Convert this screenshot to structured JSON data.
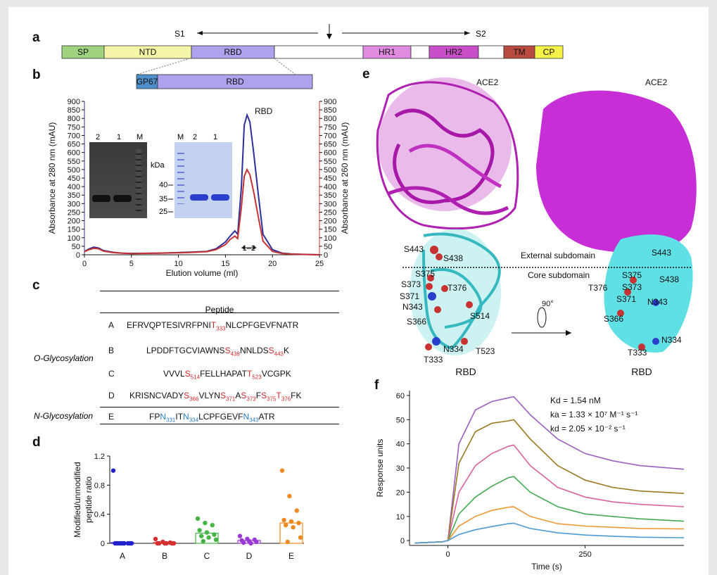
{
  "panels": {
    "a": "a",
    "b": "b",
    "c": "c",
    "d": "d",
    "e": "e",
    "f": "f"
  },
  "panel_a": {
    "s1": "S1",
    "s2": "S2",
    "domains": [
      {
        "label": "SP",
        "color": "#9fd37f"
      },
      {
        "label": "NTD",
        "color": "#f6f6a8"
      },
      {
        "label": "RBD",
        "color": "#ada2ec"
      },
      {
        "label": "",
        "color": "#ffffff"
      },
      {
        "label": "HR1",
        "color": "#e08ae0"
      },
      {
        "label": "",
        "color": "#ffffff"
      },
      {
        "label": "HR2",
        "color": "#c94fc9"
      },
      {
        "label": "",
        "color": "#ffffff"
      },
      {
        "label": "TM",
        "color": "#b94a3f"
      },
      {
        "label": "CP",
        "color": "#f6f24a"
      }
    ],
    "construct": [
      {
        "label": "GP67",
        "color": "#4f8fc9"
      },
      {
        "label": "RBD",
        "color": "#ada2ec"
      }
    ]
  },
  "panel_b": {
    "title": "RBD",
    "ylabel_left": "Absorbance at 280 nm (mAU)",
    "ylabel_right": "Absorbance at 260 nm (mAU)",
    "xlabel": "Elution volume (ml)",
    "fraction_label": "1–2",
    "gel1_lanes": [
      "2",
      "1",
      "M"
    ],
    "gel2_lanes": [
      "M",
      "2",
      "1"
    ],
    "kda": "kDa",
    "markers": [
      "40",
      "35",
      "25"
    ]
  },
  "panel_c": {
    "header": "Peptide",
    "o_label": "O-Glycosylation",
    "n_label": "N-Glycosylation",
    "rows": [
      {
        "id": "A",
        "parts": [
          [
            "EFRVQPTESIVRFPNI",
            ""
          ],
          [
            "T",
            "red"
          ],
          [
            "333",
            "redsub"
          ],
          [
            "NLCPFGEVFNATR",
            ""
          ]
        ]
      },
      {
        "id": "B",
        "parts": [
          [
            "LPDDFTGCVIAWNS",
            ""
          ],
          [
            "S",
            "red"
          ],
          [
            "438",
            "redsub"
          ],
          [
            "NNLDS",
            ""
          ],
          [
            "S",
            "red"
          ],
          [
            "443",
            "redsub"
          ],
          [
            "K",
            ""
          ]
        ]
      },
      {
        "id": "C",
        "parts": [
          [
            "VVVL",
            ""
          ],
          [
            "S",
            "red"
          ],
          [
            "514",
            "redsub"
          ],
          [
            "FELLHAPAT",
            ""
          ],
          [
            "T",
            "red"
          ],
          [
            "523",
            "redsub"
          ],
          [
            "VCGPK",
            ""
          ]
        ]
      },
      {
        "id": "D",
        "parts": [
          [
            "KRISNCVADY",
            ""
          ],
          [
            "S",
            "red"
          ],
          [
            "366",
            "redsub"
          ],
          [
            "VLYN",
            ""
          ],
          [
            "S",
            "red"
          ],
          [
            "371",
            "redsub"
          ],
          [
            "A",
            ""
          ],
          [
            "S",
            "red"
          ],
          [
            "373",
            "redsub"
          ],
          [
            "F",
            ""
          ],
          [
            "S",
            "red"
          ],
          [
            "375",
            "redsub"
          ],
          [
            "T",
            "red"
          ],
          [
            "376",
            "redsub"
          ],
          [
            "FK",
            ""
          ]
        ]
      },
      {
        "id": "E",
        "parts": [
          [
            "FP",
            ""
          ],
          [
            "N",
            "blue"
          ],
          [
            "331",
            "bluesub"
          ],
          [
            "IT",
            ""
          ],
          [
            "N",
            "blue"
          ],
          [
            "334",
            "bluesub"
          ],
          [
            "LCPFGEVF",
            ""
          ],
          [
            "N",
            "blue"
          ],
          [
            "343",
            "bluesub"
          ],
          [
            "ATR",
            ""
          ]
        ]
      }
    ]
  },
  "panel_e": {
    "ace2": "ACE2",
    "rbd": "RBD",
    "external": "External subdomain",
    "core": "Core subdomain",
    "rotation": "90°",
    "left_labels": [
      "S443",
      "S438",
      "S375",
      "S373",
      "S371",
      "T376",
      "N343",
      "S366",
      "S514",
      "N334",
      "T523",
      "T333"
    ],
    "right_labels": [
      "S443",
      "S375",
      "S373",
      "S438",
      "T376",
      "S371",
      "N343",
      "S366",
      "N334",
      "T333"
    ]
  },
  "panel_f": {
    "kd": "Kd = 1.54 nM",
    "ka": "ka = 1.33 × 10⁷ M⁻¹ s⁻¹",
    "kdis": "kd = 2.05 × 10⁻² s⁻¹"
  },
  "chart_data": [
    {
      "panel": "b",
      "type": "line",
      "title": "RBD",
      "xlabel": "Elution volume (ml)",
      "ylabel": "Absorbance at 280 nm (mAU)",
      "ylabel_right": "Absorbance at 260 nm (mAU)",
      "xlim": [
        0,
        25
      ],
      "ylim": [
        0,
        900
      ],
      "xticks": [
        0,
        5,
        10,
        15,
        20,
        25
      ],
      "yticks": [
        0,
        50,
        100,
        150,
        200,
        250,
        300,
        350,
        400,
        450,
        500,
        550,
        600,
        650,
        700,
        750,
        800,
        850,
        900
      ],
      "series": [
        {
          "color": "#2b2f9c",
          "x": [
            0,
            0.5,
            1,
            1.5,
            2,
            3,
            4,
            5,
            8,
            11,
            13,
            14,
            15,
            15.5,
            16,
            16.3,
            16.7,
            17,
            17.3,
            17.6,
            18,
            18.5,
            19,
            20,
            21,
            22,
            23,
            25
          ],
          "y": [
            20,
            35,
            45,
            40,
            25,
            15,
            10,
            8,
            10,
            15,
            20,
            35,
            75,
            110,
            140,
            120,
            400,
            760,
            820,
            780,
            600,
            350,
            120,
            30,
            10,
            5,
            3,
            0
          ]
        },
        {
          "color": "#c83232",
          "x": [
            0,
            0.5,
            1,
            1.5,
            2,
            3,
            4,
            5,
            8,
            11,
            13,
            14,
            15,
            15.5,
            16,
            16.3,
            16.7,
            17,
            17.3,
            17.6,
            18,
            18.5,
            19,
            20,
            21,
            22,
            23,
            25
          ],
          "y": [
            18,
            30,
            38,
            35,
            22,
            13,
            9,
            7,
            9,
            13,
            18,
            30,
            60,
            90,
            110,
            95,
            280,
            460,
            500,
            470,
            370,
            220,
            80,
            20,
            8,
            4,
            2,
            0
          ]
        }
      ]
    },
    {
      "panel": "d",
      "type": "scatter",
      "ylabel": "Modified/unmodified peptide ratio",
      "categories": [
        "A",
        "B",
        "C",
        "D",
        "E"
      ],
      "ylim": [
        0,
        1.2
      ],
      "yticks": [
        0,
        0.4,
        0.8,
        1.2
      ],
      "bar_means": [
        0.01,
        0.01,
        0.14,
        0.04,
        0.28
      ],
      "colors": [
        "#2222cc",
        "#d43030",
        "#44b444",
        "#9a3ad4",
        "#ee8a22"
      ],
      "points": [
        [
          1.0,
          0,
          0,
          0,
          0,
          0,
          0,
          0,
          0,
          0
        ],
        [
          0.06,
          0.02,
          0.01,
          0,
          0,
          0,
          0,
          0,
          0
        ],
        [
          0.34,
          0.28,
          0.25,
          0.18,
          0.15,
          0.12,
          0.1,
          0.08,
          0.05,
          0.03
        ],
        [
          0.1,
          0.06,
          0.05,
          0.04,
          0.03,
          0.02,
          0.01,
          0
        ],
        [
          1.0,
          0.65,
          0.45,
          0.32,
          0.3,
          0.28,
          0.25,
          0.22,
          0.08,
          0.02
        ]
      ]
    },
    {
      "panel": "f",
      "type": "line",
      "xlabel": "Time (s)",
      "ylabel": "Response units",
      "xlim": [
        -70,
        430
      ],
      "ylim": [
        -2,
        62
      ],
      "xticks": [
        0,
        250
      ],
      "yticks": [
        0,
        10,
        20,
        30,
        40,
        50,
        60
      ],
      "series": [
        {
          "color": "#9b5fc0",
          "x": [
            -60,
            -10,
            0,
            20,
            50,
            80,
            110,
            120,
            150,
            200,
            250,
            300,
            350,
            430
          ],
          "y": [
            -1,
            -0.5,
            0,
            40,
            54,
            57.5,
            59,
            59.5,
            52,
            42,
            36,
            33,
            31,
            29.5
          ]
        },
        {
          "color": "#9a7a22",
          "x": [
            -60,
            -10,
            0,
            20,
            50,
            80,
            110,
            120,
            150,
            200,
            250,
            300,
            350,
            430
          ],
          "y": [
            -1,
            -0.5,
            0,
            32,
            45,
            48.5,
            49.5,
            50,
            42,
            31,
            25,
            22,
            20.5,
            19.5
          ]
        },
        {
          "color": "#d9629e",
          "x": [
            -60,
            -10,
            0,
            20,
            50,
            80,
            110,
            120,
            150,
            200,
            250,
            300,
            350,
            430
          ],
          "y": [
            -1,
            -0.5,
            0,
            20,
            31,
            36,
            39,
            39.5,
            31,
            22,
            18,
            16,
            15,
            14
          ]
        },
        {
          "color": "#44aa55",
          "x": [
            -60,
            -10,
            0,
            20,
            50,
            80,
            110,
            120,
            150,
            200,
            250,
            300,
            350,
            430
          ],
          "y": [
            -1,
            -0.5,
            0,
            11,
            18,
            22.5,
            26,
            26.5,
            20,
            14,
            11,
            10,
            9,
            8
          ]
        },
        {
          "color": "#ee9933",
          "x": [
            -60,
            -10,
            0,
            20,
            50,
            80,
            110,
            120,
            150,
            200,
            250,
            300,
            350,
            430
          ],
          "y": [
            -1,
            -0.5,
            0,
            6,
            10,
            12.5,
            13.8,
            14,
            10,
            7,
            6,
            5.5,
            5,
            4.8
          ]
        },
        {
          "color": "#4c9bd4",
          "x": [
            -60,
            -10,
            0,
            20,
            50,
            80,
            110,
            120,
            150,
            200,
            250,
            300,
            350,
            430
          ],
          "y": [
            -1,
            -0.5,
            0,
            2.5,
            4.5,
            5.8,
            7,
            7.2,
            5,
            3.2,
            2.3,
            1.8,
            1.4,
            1.2
          ]
        }
      ]
    }
  ]
}
